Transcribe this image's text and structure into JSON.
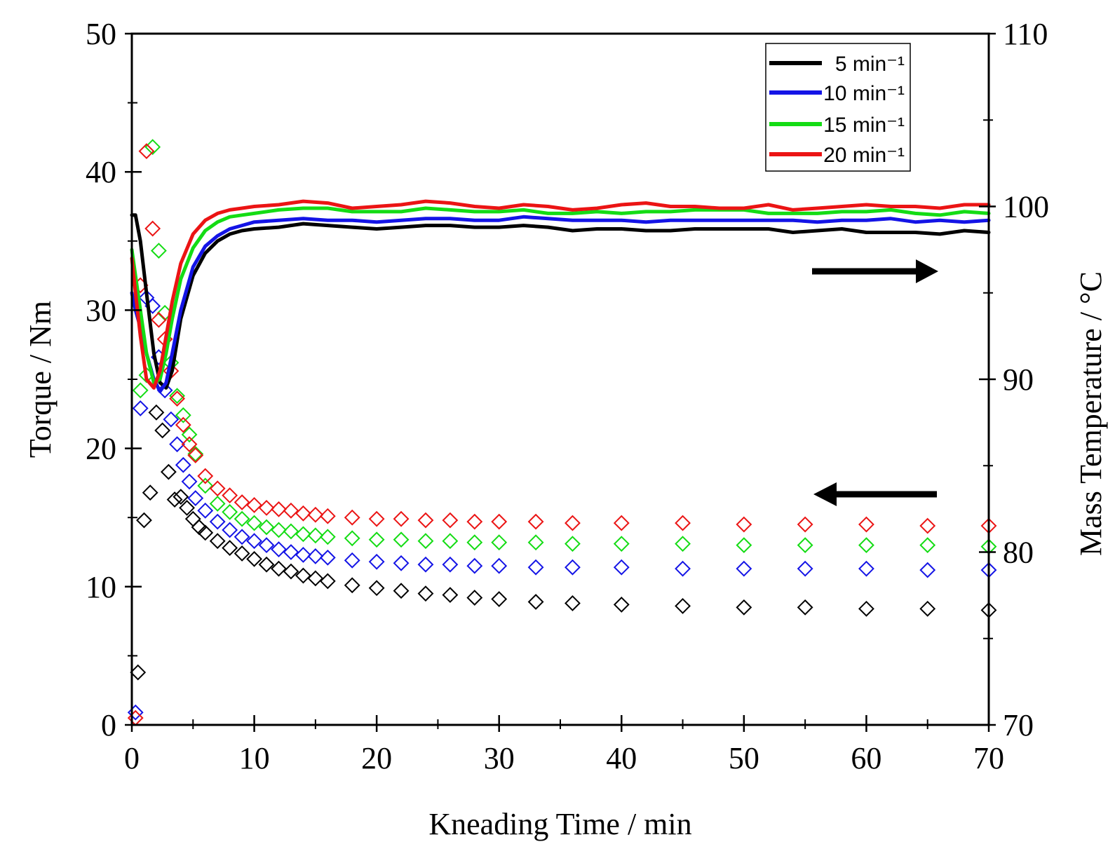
{
  "chart_data": {
    "type": "scatter",
    "xlabel": "Kneading Time / min",
    "ylabel": "Torque / Nm",
    "y2label": "Mass Temperature / °C",
    "xlim": [
      0,
      70
    ],
    "ylim": [
      0,
      50
    ],
    "y2lim": [
      70,
      110
    ],
    "x_ticks": [
      "0",
      "10",
      "20",
      "30",
      "40",
      "50",
      "60",
      "70"
    ],
    "y_ticks": [
      "0",
      "10",
      "20",
      "30",
      "40",
      "50"
    ],
    "y2_ticks": [
      "70",
      "80",
      "90",
      "100",
      "110"
    ],
    "grid": false,
    "legend_position": "top-right",
    "legend": [
      "5 min⁻¹",
      "10 min⁻¹",
      "15 min⁻¹",
      "20 min⁻¹"
    ],
    "colors": {
      "5 min⁻¹": "#000000",
      "10 min⁻¹": "#1414e6",
      "15 min⁻¹": "#14dc14",
      "20 min⁻¹": "#eb1414"
    },
    "arrows": [
      {
        "direction": "right",
        "points_to_axis": "Mass Temperature / °C"
      },
      {
        "direction": "left",
        "points_to_axis": "Torque / Nm"
      }
    ],
    "series": [
      {
        "name": "5 min⁻¹",
        "mass_temperature": {
          "axis": "right",
          "style": "line",
          "x": [
            0,
            0.3,
            0.7,
            1.2,
            1.8,
            2.3,
            2.8,
            3.3,
            4,
            5,
            6,
            7,
            8,
            9,
            10,
            12,
            14,
            16,
            18,
            20,
            22,
            24,
            26,
            28,
            30,
            32,
            34,
            36,
            38,
            40,
            42,
            44,
            46,
            48,
            50,
            52,
            54,
            56,
            58,
            60,
            62,
            64,
            66,
            68,
            70
          ],
          "y": [
            99.5,
            99.5,
            98,
            95,
            91.5,
            89.8,
            89.5,
            90.5,
            93.5,
            96,
            97.3,
            98,
            98.4,
            98.6,
            98.7,
            98.8,
            99,
            98.9,
            98.8,
            98.7,
            98.8,
            98.9,
            98.9,
            98.8,
            98.8,
            98.9,
            98.8,
            98.6,
            98.7,
            98.7,
            98.6,
            98.6,
            98.7,
            98.7,
            98.7,
            98.7,
            98.5,
            98.6,
            98.7,
            98.5,
            98.5,
            98.5,
            98.4,
            98.6,
            98.5
          ]
        },
        "torque": {
          "axis": "left",
          "style": "open-diamond",
          "x": [
            0.5,
            1,
            1.5,
            2,
            2.5,
            3,
            3.5,
            4,
            4.5,
            5,
            5.5,
            6,
            7,
            8,
            9,
            10,
            11,
            12,
            13,
            14,
            15,
            16,
            18,
            20,
            22,
            24,
            26,
            28,
            30,
            33,
            36,
            40,
            45,
            50,
            55,
            60,
            65,
            70
          ],
          "y": [
            3.8,
            14.8,
            16.8,
            22.6,
            21.3,
            18.3,
            16.3,
            16.5,
            15.7,
            14.9,
            14.3,
            13.9,
            13.3,
            12.8,
            12.4,
            12,
            11.6,
            11.3,
            11.1,
            10.8,
            10.6,
            10.4,
            10.1,
            9.9,
            9.7,
            9.5,
            9.4,
            9.2,
            9.1,
            8.9,
            8.8,
            8.7,
            8.6,
            8.5,
            8.5,
            8.4,
            8.4,
            8.3
          ]
        }
      },
      {
        "name": "10 min⁻¹",
        "mass_temperature": {
          "axis": "right",
          "style": "line",
          "x": [
            0,
            0.3,
            0.7,
            1.2,
            1.8,
            2.3,
            2.8,
            3.3,
            4,
            5,
            6,
            7,
            8,
            9,
            10,
            12,
            14,
            16,
            18,
            20,
            22,
            24,
            26,
            28,
            30,
            32,
            34,
            36,
            38,
            40,
            42,
            44,
            46,
            48,
            50,
            52,
            54,
            56,
            58,
            60,
            62,
            64,
            66,
            68,
            70
          ],
          "y": [
            95,
            94,
            93,
            91.5,
            90,
            89.3,
            89.8,
            91.5,
            94,
            96.5,
            97.7,
            98.3,
            98.7,
            98.9,
            99.1,
            99.2,
            99.3,
            99.2,
            99.2,
            99.1,
            99.2,
            99.3,
            99.3,
            99.2,
            99.2,
            99.4,
            99.3,
            99.2,
            99.2,
            99.2,
            99.1,
            99.2,
            99.2,
            99.2,
            99.2,
            99.2,
            99.2,
            99.1,
            99.2,
            99.2,
            99.3,
            99.1,
            99.2,
            99.1,
            99.2
          ]
        },
        "torque": {
          "axis": "left",
          "style": "open-diamond",
          "x": [
            0.3,
            0.7,
            1.2,
            1.7,
            2.2,
            2.7,
            3.2,
            3.7,
            4.2,
            4.7,
            5.2,
            6,
            7,
            8,
            9,
            10,
            11,
            12,
            13,
            14,
            15,
            16,
            18,
            20,
            22,
            24,
            26,
            28,
            30,
            33,
            36,
            40,
            45,
            50,
            55,
            60,
            65,
            70
          ],
          "y": [
            0.9,
            22.9,
            30.9,
            30.3,
            26.6,
            24.2,
            22.1,
            20.3,
            18.8,
            17.6,
            16.4,
            15.5,
            14.7,
            14.1,
            13.6,
            13.3,
            13,
            12.7,
            12.5,
            12.3,
            12.2,
            12.1,
            11.9,
            11.8,
            11.7,
            11.6,
            11.6,
            11.5,
            11.5,
            11.4,
            11.4,
            11.4,
            11.3,
            11.3,
            11.3,
            11.3,
            11.2,
            11.2
          ]
        }
      },
      {
        "name": "15 min⁻¹",
        "mass_temperature": {
          "axis": "right",
          "style": "line",
          "x": [
            0,
            0.3,
            0.7,
            1.2,
            1.8,
            2.3,
            2.8,
            3.3,
            4,
            5,
            6,
            7,
            8,
            9,
            10,
            12,
            14,
            16,
            18,
            20,
            22,
            24,
            26,
            28,
            30,
            32,
            34,
            36,
            38,
            40,
            42,
            44,
            46,
            48,
            50,
            52,
            54,
            56,
            58,
            60,
            62,
            64,
            66,
            68,
            70
          ],
          "y": [
            97.5,
            96,
            94,
            91.5,
            89.8,
            90,
            91.5,
            93.5,
            95.8,
            97.6,
            98.6,
            99.1,
            99.4,
            99.5,
            99.6,
            99.8,
            99.9,
            99.9,
            99.7,
            99.7,
            99.7,
            99.9,
            99.8,
            99.7,
            99.7,
            99.8,
            99.6,
            99.6,
            99.7,
            99.6,
            99.7,
            99.7,
            99.8,
            99.8,
            99.8,
            99.6,
            99.6,
            99.6,
            99.7,
            99.7,
            99.8,
            99.6,
            99.5,
            99.7,
            99.6
          ]
        },
        "torque": {
          "axis": "left",
          "style": "open-diamond",
          "x": [
            0.7,
            1.2,
            1.7,
            2.2,
            2.7,
            3.2,
            3.7,
            4.2,
            4.7,
            5.2,
            6,
            7,
            8,
            9,
            10,
            11,
            12,
            13,
            14,
            15,
            16,
            18,
            20,
            22,
            24,
            26,
            28,
            30,
            33,
            36,
            40,
            45,
            50,
            55,
            60,
            65,
            70
          ],
          "y": [
            24.2,
            25.3,
            41.8,
            34.3,
            29.8,
            26.2,
            23.8,
            22.4,
            21,
            19.6,
            17.3,
            16,
            15.4,
            14.9,
            14.6,
            14.3,
            14.1,
            14,
            13.8,
            13.7,
            13.6,
            13.5,
            13.4,
            13.4,
            13.3,
            13.3,
            13.2,
            13.2,
            13.2,
            13.1,
            13.1,
            13.1,
            13,
            13,
            13,
            13,
            12.9
          ]
        }
      },
      {
        "name": "20 min⁻¹",
        "mass_temperature": {
          "axis": "right",
          "style": "line",
          "x": [
            0,
            0.3,
            0.7,
            1.2,
            1.8,
            2.3,
            2.8,
            3.3,
            4,
            5,
            6,
            7,
            8,
            9,
            10,
            12,
            14,
            16,
            18,
            20,
            22,
            24,
            26,
            28,
            30,
            32,
            34,
            36,
            38,
            40,
            42,
            44,
            46,
            48,
            50,
            52,
            54,
            56,
            58,
            60,
            62,
            64,
            66,
            68,
            70
          ],
          "y": [
            97,
            95,
            92.5,
            90,
            89.5,
            90.5,
            92.5,
            94.5,
            96.7,
            98.4,
            99.2,
            99.6,
            99.8,
            99.9,
            100,
            100.1,
            100.3,
            100.2,
            99.9,
            100,
            100.1,
            100.3,
            100.2,
            100,
            99.9,
            100.1,
            100,
            99.8,
            99.9,
            100.1,
            100.2,
            100,
            100,
            99.9,
            99.9,
            100.1,
            99.8,
            99.9,
            100,
            100.1,
            100,
            100,
            99.9,
            100.1,
            100.1
          ]
        },
        "torque": {
          "axis": "left",
          "style": "open-diamond",
          "x": [
            0.3,
            0.7,
            1.2,
            1.7,
            2.2,
            2.7,
            3.2,
            3.7,
            4.2,
            4.7,
            5.2,
            6,
            7,
            8,
            9,
            10,
            11,
            12,
            13,
            14,
            15,
            16,
            18,
            20,
            22,
            24,
            26,
            28,
            30,
            33,
            36,
            40,
            45,
            50,
            55,
            60,
            65,
            70
          ],
          "y": [
            0.5,
            31.8,
            41.5,
            35.9,
            29.3,
            27.9,
            25.6,
            23.6,
            21.7,
            20.3,
            19.5,
            18,
            17.1,
            16.6,
            16.1,
            15.9,
            15.7,
            15.6,
            15.5,
            15.3,
            15.2,
            15.1,
            15,
            14.9,
            14.9,
            14.8,
            14.8,
            14.7,
            14.7,
            14.7,
            14.6,
            14.6,
            14.6,
            14.5,
            14.5,
            14.5,
            14.4,
            14.4
          ]
        }
      }
    ]
  }
}
